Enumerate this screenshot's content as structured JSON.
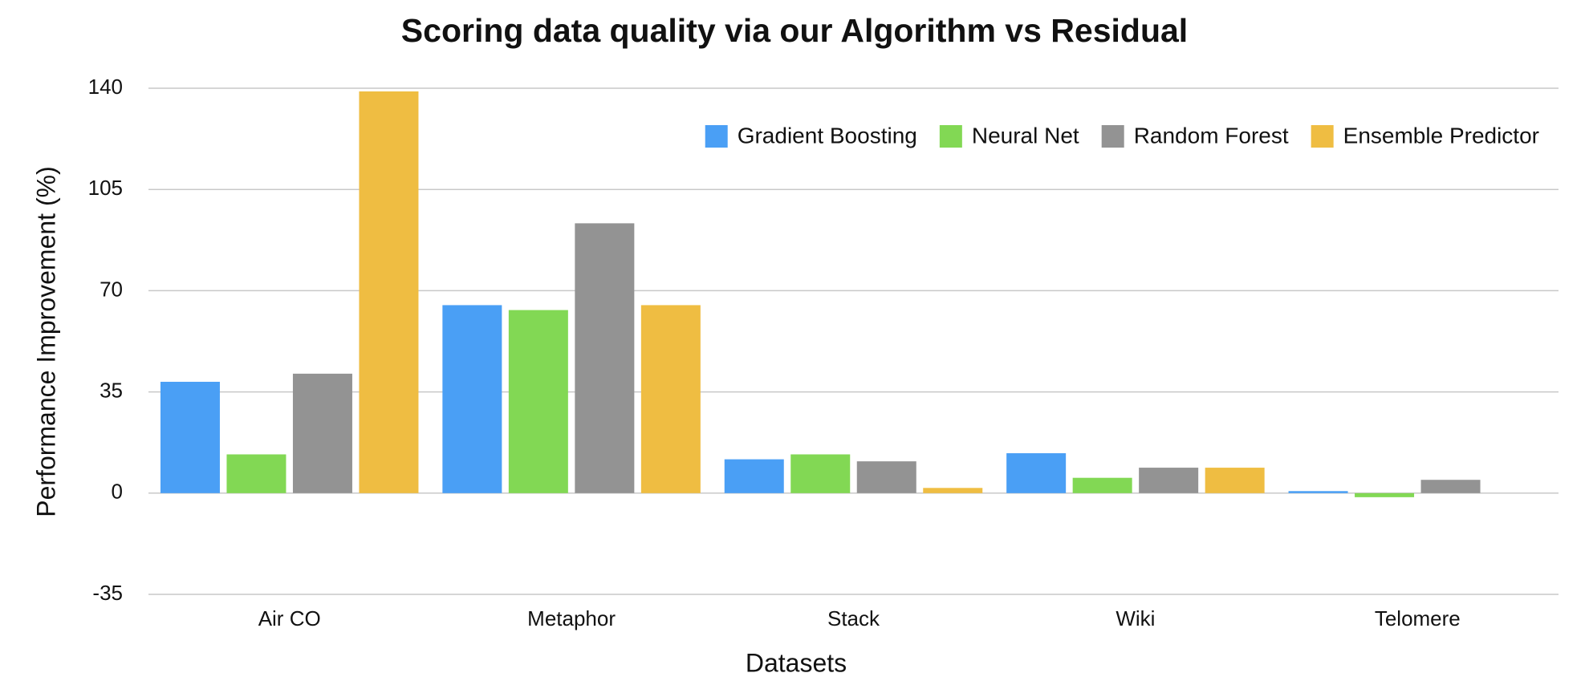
{
  "chart_data": {
    "type": "bar",
    "title": "Scoring data quality via our Algorithm vs Residual",
    "x_label": "Datasets",
    "y_label": "Performance Improvement (%)",
    "categories": [
      "Air CO",
      "Metaphor",
      "Stack",
      "Wiki",
      "Telomere"
    ],
    "series": [
      {
        "name": "Gradient Boosting",
        "color": "#4a9ff5",
        "values": [
          38.5,
          65,
          11.7,
          13.8,
          0.7
        ]
      },
      {
        "name": "Neural Net",
        "color": "#82d854",
        "values": [
          13.4,
          63.3,
          13.4,
          5.3,
          -1.4
        ]
      },
      {
        "name": "Random Forest",
        "color": "#939393",
        "values": [
          41.3,
          93.3,
          11,
          8.8,
          4.6
        ]
      },
      {
        "name": "Ensemble Predictor",
        "color": "#efbd42",
        "values": [
          138.9,
          65,
          1.8,
          8.8,
          null
        ]
      }
    ],
    "ylim": [
      -35,
      140
    ],
    "yticks": [
      -35,
      0,
      35,
      70,
      105,
      140
    ],
    "grid": true,
    "legend": "upper right"
  }
}
